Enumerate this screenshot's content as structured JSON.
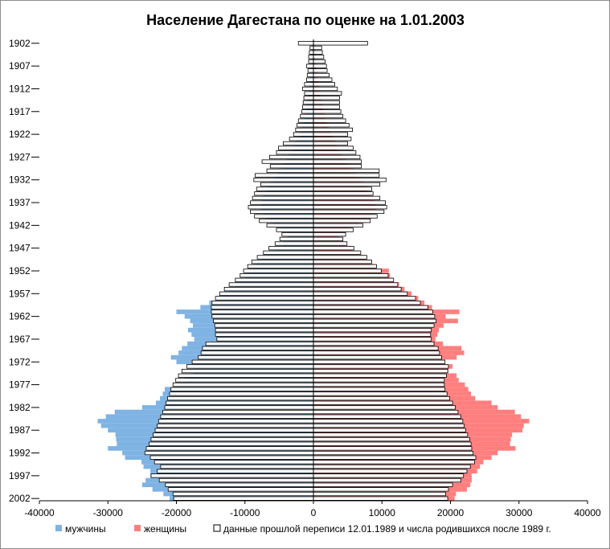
{
  "chart_data": {
    "type": "bar",
    "orientation": "horizontal-population-pyramid",
    "title": "Население Дагестана  по оценке на 1.01.2003",
    "xlabel": "",
    "ylabel": "",
    "xlim": [
      -40000,
      40000
    ],
    "ylim": [
      1902,
      2002
    ],
    "x_ticks": [
      -40000,
      -30000,
      -20000,
      -10000,
      0,
      10000,
      20000,
      30000,
      40000
    ],
    "y_ticks": [
      1902,
      1907,
      1912,
      1917,
      1922,
      1927,
      1932,
      1937,
      1942,
      1947,
      1952,
      1957,
      1962,
      1967,
      1972,
      1977,
      1982,
      1987,
      1992,
      1997,
      2002
    ],
    "legend_position": "bottom",
    "grid": false,
    "colors": {
      "male": "#7fb3e3",
      "female": "#ff7f7f",
      "outline_fill": "#ffffff",
      "outline_stroke": "#000000"
    },
    "categories": [
      1902,
      1903,
      1904,
      1905,
      1906,
      1907,
      1908,
      1909,
      1910,
      1911,
      1912,
      1913,
      1914,
      1915,
      1916,
      1917,
      1918,
      1919,
      1920,
      1921,
      1922,
      1923,
      1924,
      1925,
      1926,
      1927,
      1928,
      1929,
      1930,
      1931,
      1932,
      1933,
      1934,
      1935,
      1936,
      1937,
      1938,
      1939,
      1940,
      1941,
      1942,
      1943,
      1944,
      1945,
      1946,
      1947,
      1948,
      1949,
      1950,
      1951,
      1952,
      1953,
      1954,
      1955,
      1956,
      1957,
      1958,
      1959,
      1960,
      1961,
      1962,
      1963,
      1964,
      1965,
      1966,
      1967,
      1968,
      1969,
      1970,
      1971,
      1972,
      1973,
      1974,
      1975,
      1976,
      1977,
      1978,
      1979,
      1980,
      1981,
      1982,
      1983,
      1984,
      1985,
      1986,
      1987,
      1988,
      1989,
      1990,
      1991,
      1992,
      1993,
      1994,
      1995,
      1996,
      1997,
      1998,
      1999,
      2000,
      2001,
      2002
    ],
    "series": [
      {
        "name": "мужчины",
        "kind": "male-2003",
        "values": [
          -200,
          -200,
          -300,
          -300,
          -400,
          -400,
          -500,
          -500,
          -500,
          -600,
          -600,
          -700,
          -800,
          -900,
          -1000,
          -1100,
          -1200,
          -1400,
          -1600,
          -1800,
          -2000,
          -2300,
          -2600,
          -3000,
          -3300,
          -3700,
          -4100,
          -4500,
          -5000,
          -5400,
          -5900,
          -6300,
          -6800,
          -7100,
          -7400,
          -7600,
          -7800,
          -7500,
          -7000,
          -6400,
          -5800,
          -4800,
          -3800,
          -3600,
          -4500,
          -5500,
          -6500,
          -7500,
          -8200,
          -8800,
          -9400,
          -10000,
          -10800,
          -11500,
          -12300,
          -13200,
          -14200,
          -15200,
          -16500,
          -20000,
          -18800,
          -18000,
          -17600,
          -18300,
          -17800,
          -17400,
          -18400,
          -19200,
          -19700,
          -20800,
          -20000,
          -18400,
          -17500,
          -18200,
          -18800,
          -20400,
          -21700,
          -22000,
          -22400,
          -23000,
          -25000,
          -29000,
          -30300,
          -31500,
          -31000,
          -30000,
          -28900,
          -28800,
          -28700,
          -30000,
          -27900,
          -27500,
          -25100,
          -24800,
          -23800,
          -23800,
          -24500,
          -25000,
          -23500,
          -21900,
          -21000
        ]
      },
      {
        "name": "женщины",
        "kind": "female-2003",
        "values": [
          200,
          300,
          300,
          400,
          400,
          500,
          500,
          600,
          700,
          800,
          900,
          1000,
          1100,
          1200,
          1400,
          1500,
          1700,
          1900,
          2100,
          2300,
          2600,
          2900,
          3200,
          3500,
          3900,
          4300,
          4800,
          5300,
          5800,
          6300,
          6800,
          7300,
          7800,
          8300,
          8700,
          9000,
          9200,
          9100,
          8600,
          7600,
          6500,
          5000,
          3800,
          3700,
          4600,
          5600,
          6600,
          7500,
          8300,
          9000,
          11000,
          11200,
          11600,
          12500,
          13300,
          14300,
          15300,
          16200,
          17300,
          21300,
          19300,
          21100,
          19000,
          18300,
          18100,
          17800,
          18900,
          21600,
          22000,
          20900,
          18800,
          20300,
          19700,
          20900,
          21200,
          22100,
          22600,
          23000,
          23600,
          26000,
          26900,
          29400,
          30300,
          31500,
          30700,
          30500,
          29000,
          28800,
          28700,
          29500,
          26900,
          26000,
          24800,
          24300,
          23900,
          23100,
          23100,
          22900,
          22400,
          20800,
          20600
        ]
      },
      {
        "name": "данные прошлой переписи 12.01.1989 и числа родившихся после 1989 г.",
        "kind": "census-1989",
        "male_values": [
          -2200,
          -500,
          -600,
          -700,
          -700,
          -1000,
          -800,
          -900,
          -1000,
          -1300,
          -1600,
          -1300,
          -1400,
          -1500,
          -1600,
          -1700,
          -1900,
          -2200,
          -2400,
          -2600,
          -2900,
          -3500,
          -4400,
          -5100,
          -5400,
          -6400,
          -7500,
          -6300,
          -6800,
          -8500,
          -8700,
          -7700,
          -8300,
          -8600,
          -8900,
          -9200,
          -9500,
          -9200,
          -8600,
          -7900,
          -6800,
          -5400,
          -4600,
          -4900,
          -5600,
          -6500,
          -7300,
          -8200,
          -9000,
          -9600,
          -10200,
          -10700,
          -11400,
          -12300,
          -13000,
          -13700,
          -14300,
          -14800,
          -14900,
          -14900,
          -14800,
          -14600,
          -14400,
          -14300,
          -14300,
          -14100,
          -15700,
          -16200,
          -16400,
          -16800,
          -17700,
          -18500,
          -19200,
          -19700,
          -20100,
          -20500,
          -20800,
          -21000,
          -21300,
          -21500,
          -21700,
          -22000,
          -22300,
          -22600,
          -22800,
          -23100,
          -23400,
          -23700,
          -24000,
          -24400,
          -24600,
          -23800,
          -23200,
          -22300,
          -22800,
          -23700,
          -22500,
          -21600,
          -21200,
          -20500,
          -20400
        ],
        "female_values": [
          7900,
          1200,
          1300,
          1500,
          1700,
          1900,
          2000,
          2300,
          2700,
          3100,
          3500,
          4100,
          3800,
          3800,
          3800,
          4000,
          4300,
          4700,
          5200,
          5700,
          5000,
          5500,
          5000,
          5800,
          6200,
          6800,
          7000,
          7000,
          9600,
          9600,
          10600,
          9700,
          8500,
          8700,
          9700,
          10500,
          10700,
          10300,
          9300,
          8300,
          7200,
          5800,
          4700,
          4300,
          4900,
          5900,
          6900,
          7800,
          8500,
          9200,
          9900,
          10900,
          11700,
          12300,
          12800,
          13700,
          14900,
          15600,
          16700,
          17400,
          17700,
          17900,
          17600,
          17200,
          17100,
          17200,
          17600,
          18200,
          18400,
          18700,
          19200,
          19700,
          19600,
          19400,
          19100,
          19100,
          19200,
          19500,
          19900,
          20300,
          20700,
          21100,
          21500,
          21800,
          22000,
          22200,
          22500,
          22800,
          23000,
          23100,
          23300,
          23700,
          23500,
          22900,
          22400,
          21900,
          21500,
          20300,
          19700,
          19300,
          19600
        ]
      }
    ],
    "legend": [
      {
        "label": "мужчины",
        "swatch": "male"
      },
      {
        "label": "женщины",
        "swatch": "female"
      },
      {
        "label": "данные прошлой переписи 12.01.1989 и числа родившихся после 1989 г.",
        "swatch": "outline"
      }
    ]
  }
}
